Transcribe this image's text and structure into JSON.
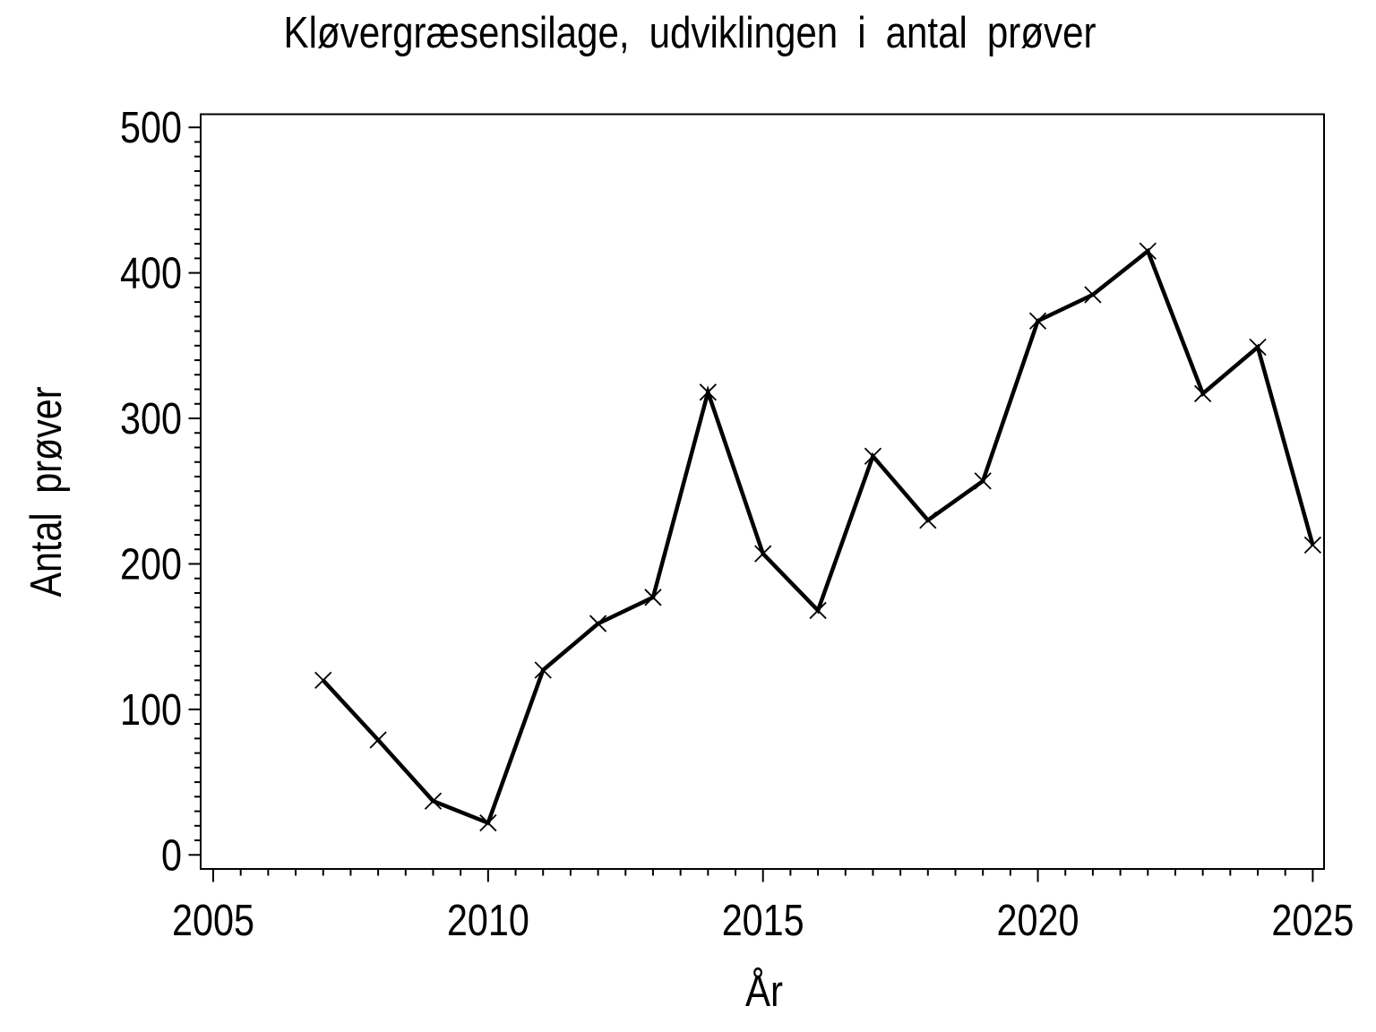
{
  "figure": {
    "background_color": "#ffffff",
    "foreground_color": "#000000"
  },
  "chart_data": {
    "type": "line",
    "title": "Kløvergræsensilage, udviklingen i antal prøver",
    "xlabel": "År",
    "ylabel": "Antal prøver",
    "x": [
      2007,
      2008,
      2009,
      2010,
      2011,
      2012,
      2013,
      2014,
      2015,
      2016,
      2017,
      2018,
      2019,
      2020,
      2021,
      2022,
      2023,
      2024,
      2025
    ],
    "values": [
      120,
      79,
      37,
      22,
      127,
      159,
      177,
      318,
      207,
      168,
      274,
      230,
      257,
      367,
      385,
      415,
      317,
      349,
      213
    ],
    "series_name": "Antal prøver",
    "marker": "x",
    "line_color": "#000000",
    "marker_color": "#000000",
    "xlim": [
      2004.77,
      2025.21
    ],
    "ylim": [
      -10,
      509
    ],
    "x_major_ticks": [
      2005,
      2010,
      2015,
      2020,
      2025
    ],
    "x_minor_step": 0.5,
    "y_major_ticks": [
      0,
      100,
      200,
      300,
      400,
      500
    ],
    "y_minor_step": 10,
    "grid": false,
    "legend": null
  }
}
